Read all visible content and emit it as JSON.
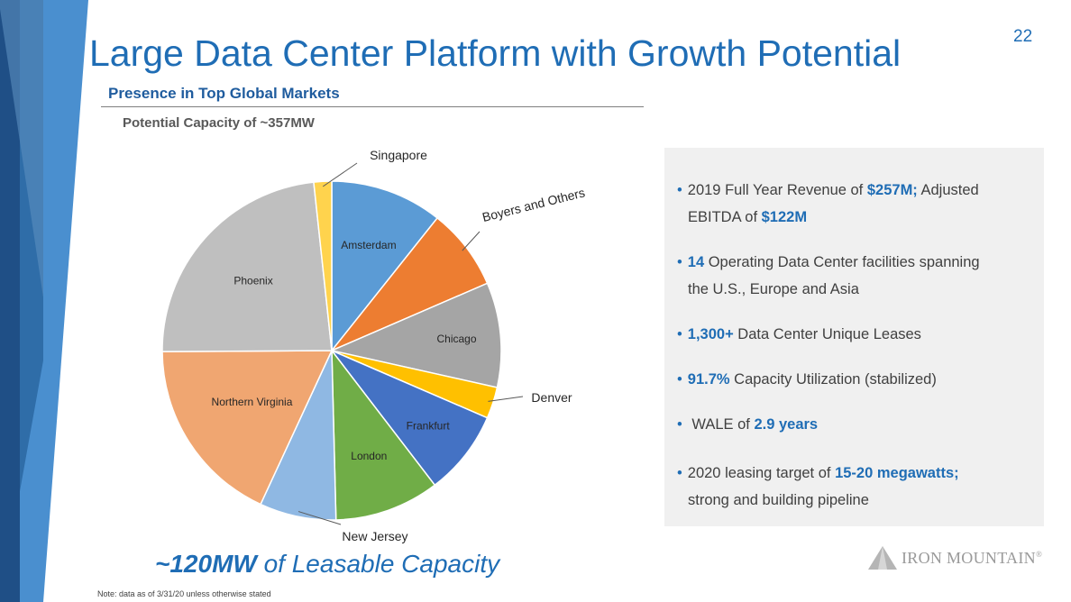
{
  "page_number": "22",
  "title": "Large Data Center Platform with Growth Potential",
  "section_heading": "Presence in Top Global Markets",
  "chart_data": {
    "type": "pie",
    "title": "Potential Capacity of ~357MW",
    "slices": [
      {
        "label": "Amsterdam",
        "value": 10.7,
        "color": "#5b9bd5"
      },
      {
        "label": "Boyers and Others",
        "value": 7.8,
        "color": "#ed7d31"
      },
      {
        "label": "Chicago",
        "value": 10.0,
        "color": "#a5a5a5"
      },
      {
        "label": "Denver",
        "value": 3.0,
        "color": "#ffc000"
      },
      {
        "label": "Frankfurt",
        "value": 8.1,
        "color": "#4472c4"
      },
      {
        "label": "London",
        "value": 10.0,
        "color": "#70ad47"
      },
      {
        "label": "New Jersey",
        "value": 7.3,
        "color": "#8fb8e3"
      },
      {
        "label": "Northern Virginia",
        "value": 18.0,
        "color": "#f0a671"
      },
      {
        "label": "Phoenix",
        "value": 23.4,
        "color": "#bfbfbf"
      },
      {
        "label": "Singapore",
        "value": 1.7,
        "color": "#ffd34d"
      }
    ]
  },
  "bullets": [
    {
      "pre": "2019 Full Year Revenue of ",
      "h1": "$257M;",
      "mid": " Adjusted",
      "line2_pre": "EBITDA of ",
      "h2": "$122M",
      "line2_post": ""
    },
    {
      "pre": "",
      "h1": "14",
      "mid": " Operating Data Center facilities spanning",
      "line2_pre": "the U.S., Europe and Asia",
      "h2": "",
      "line2_post": ""
    },
    {
      "pre": "",
      "h1": "1,300+",
      "mid": " Data Center Unique Leases"
    },
    {
      "pre": "",
      "h1": "91.7%",
      "mid": " Capacity Utilization (stabilized)"
    },
    {
      "pre": " WALE of ",
      "h1": "2.9 years",
      "mid": ""
    },
    {
      "pre": "2020 leasing target of ",
      "h1": "15-20 megawatts;",
      "mid": "",
      "line2_pre": "strong and building pipeline",
      "h2": "",
      "line2_post": ""
    }
  ],
  "caption": {
    "strong": "~120MW",
    "rest": " of Leasable Capacity"
  },
  "note": "Note: data as of 3/31/20 unless otherwise stated",
  "logo": {
    "text": "IRON MOUNTAIN",
    "mark": "®",
    "icon": "mountain-icon"
  }
}
